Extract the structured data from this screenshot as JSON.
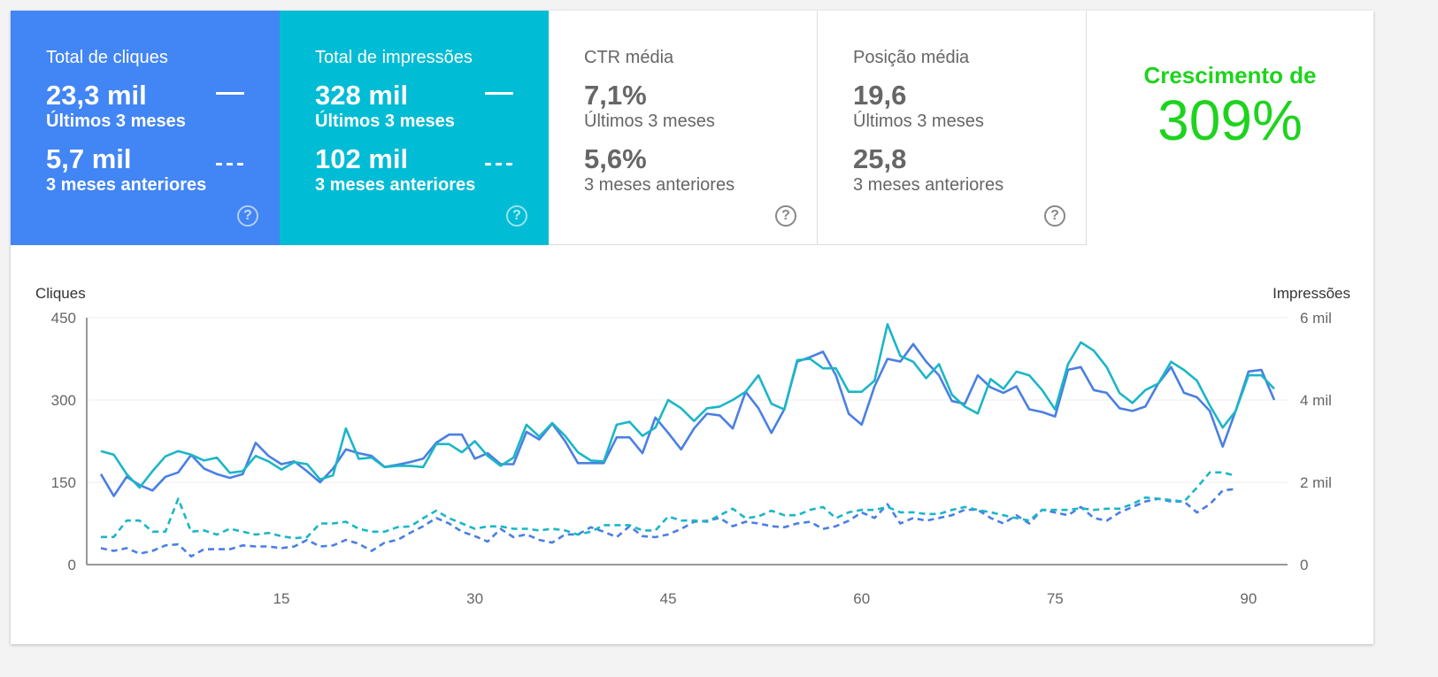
{
  "tiles": [
    {
      "label": "Total de cliques",
      "current": "23,3 mil",
      "current_period": "Últimos 3 meses",
      "previous": "5,7 mil",
      "previous_period": "3 meses anteriores"
    },
    {
      "label": "Total de impressões",
      "current": "328 mil",
      "current_period": "Últimos 3 meses",
      "previous": "102 mil",
      "previous_period": "3 meses anteriores"
    },
    {
      "label": "CTR média",
      "current": "7,1%",
      "current_period": "Últimos 3 meses",
      "previous": "5,6%",
      "previous_period": "3 meses anteriores"
    },
    {
      "label": "Posição média",
      "current": "19,6",
      "current_period": "Últimos 3 meses",
      "previous": "25,8",
      "previous_period": "3 meses anteriores"
    }
  ],
  "help_icon": "?",
  "growth": {
    "label": "Crescimento de",
    "value": "309%"
  },
  "colors": {
    "clicks": "#4285f4",
    "impressions": "#00bcd4",
    "clicks_line": "#4a7fe3",
    "impressions_line": "#1bb6c6",
    "growth": "#1ed31e"
  },
  "chart_data": {
    "type": "line",
    "ylabel_left": "Cliques",
    "ylabel_right": "Impressões",
    "ylim_left": [
      0,
      450
    ],
    "ylim_right": [
      0,
      6
    ],
    "yticks_left": [
      "0",
      "150",
      "300",
      "450"
    ],
    "yticks_right": [
      "0",
      "2 mil",
      "4 mil",
      "6 mil"
    ],
    "xticks": [
      15,
      30,
      45,
      60,
      75,
      90
    ],
    "xlim": [
      1,
      92
    ],
    "grid": true,
    "series": [
      {
        "name": "Cliques - Últimos 3 meses",
        "axis": "left",
        "style": "solid",
        "color": "#4a7fe3",
        "values": [
          165,
          125,
          160,
          145,
          135,
          160,
          168,
          200,
          175,
          165,
          158,
          165,
          222,
          198,
          183,
          188,
          170,
          150,
          175,
          210,
          203,
          198,
          178,
          182,
          187,
          193,
          222,
          237,
          237,
          193,
          203,
          183,
          183,
          242,
          228,
          257,
          225,
          185,
          185,
          185,
          232,
          232,
          203,
          268,
          240,
          210,
          248,
          275,
          272,
          248,
          315,
          285,
          240,
          283,
          370,
          378,
          388,
          345,
          275,
          255,
          325,
          375,
          370,
          402,
          370,
          345,
          298,
          293,
          345,
          323,
          313,
          325,
          283,
          278,
          270,
          355,
          360,
          318,
          313,
          285,
          280,
          288,
          330,
          360,
          313,
          305,
          280,
          215,
          280,
          352,
          355,
          300
        ]
      },
      {
        "name": "Impressões - Últimos 3 meses (mil)",
        "axis": "right",
        "style": "solid",
        "color": "#1bb6c6",
        "values": [
          2.76,
          2.67,
          2.2,
          1.87,
          2.27,
          2.63,
          2.76,
          2.67,
          2.53,
          2.6,
          2.23,
          2.27,
          2.64,
          2.51,
          2.31,
          2.49,
          2.44,
          2.07,
          2.17,
          3.31,
          2.57,
          2.6,
          2.37,
          2.4,
          2.4,
          2.37,
          2.93,
          2.93,
          2.73,
          3.0,
          2.64,
          2.4,
          2.6,
          3.4,
          3.11,
          3.44,
          3.13,
          2.73,
          2.53,
          2.51,
          3.4,
          3.47,
          3.13,
          3.33,
          4.0,
          3.8,
          3.49,
          3.8,
          3.84,
          4.0,
          4.2,
          4.6,
          3.91,
          3.77,
          4.97,
          5.0,
          4.77,
          4.77,
          4.2,
          4.2,
          4.47,
          5.84,
          5.07,
          4.93,
          4.53,
          4.87,
          4.13,
          3.84,
          3.67,
          4.51,
          4.27,
          4.69,
          4.6,
          4.24,
          3.77,
          4.87,
          5.4,
          5.2,
          4.8,
          4.17,
          3.93,
          4.24,
          4.4,
          4.93,
          4.73,
          4.47,
          3.87,
          3.33,
          3.73,
          4.6,
          4.6,
          4.27
        ]
      },
      {
        "name": "Cliques - 3 meses anteriores",
        "axis": "left",
        "style": "dashed",
        "color": "#4a7fe3",
        "values": [
          30,
          25,
          30,
          20,
          25,
          35,
          37,
          15,
          28,
          28,
          28,
          35,
          33,
          33,
          30,
          33,
          45,
          33,
          35,
          45,
          38,
          25,
          40,
          45,
          58,
          70,
          85,
          75,
          60,
          52,
          42,
          65,
          50,
          55,
          45,
          40,
          55,
          55,
          68,
          60,
          50,
          70,
          52,
          50,
          55,
          65,
          78,
          80,
          85,
          70,
          78,
          75,
          70,
          68,
          75,
          78,
          65,
          70,
          80,
          95,
          85,
          110,
          75,
          85,
          80,
          85,
          90,
          100,
          100,
          85,
          75,
          90,
          75,
          100,
          95,
          90,
          105,
          85,
          80,
          95,
          105,
          115,
          120,
          115,
          115,
          95,
          110,
          135,
          138
        ]
      },
      {
        "name": "Impressões - 3 meses anteriores (mil)",
        "axis": "right",
        "style": "dashed",
        "color": "#1bb6c6",
        "values": [
          0.67,
          0.67,
          1.07,
          1.07,
          0.8,
          0.8,
          1.6,
          0.8,
          0.83,
          0.73,
          0.87,
          0.8,
          0.73,
          0.77,
          0.69,
          0.64,
          0.67,
          1.0,
          1.0,
          1.04,
          0.87,
          0.8,
          0.8,
          0.91,
          0.93,
          1.13,
          1.31,
          1.13,
          1.0,
          0.87,
          0.93,
          0.93,
          0.87,
          0.87,
          0.83,
          0.87,
          0.83,
          0.73,
          0.8,
          0.96,
          0.96,
          0.96,
          0.83,
          0.83,
          1.17,
          1.07,
          1.07,
          1.04,
          1.2,
          1.36,
          1.13,
          1.17,
          1.31,
          1.2,
          1.2,
          1.33,
          1.4,
          1.13,
          1.27,
          1.33,
          1.33,
          1.4,
          1.27,
          1.27,
          1.23,
          1.23,
          1.33,
          1.4,
          1.33,
          1.27,
          1.2,
          1.13,
          1.07,
          1.33,
          1.33,
          1.33,
          1.37,
          1.33,
          1.36,
          1.36,
          1.47,
          1.63,
          1.6,
          1.57,
          1.53,
          1.87,
          2.24,
          2.24,
          2.16
        ]
      }
    ]
  }
}
